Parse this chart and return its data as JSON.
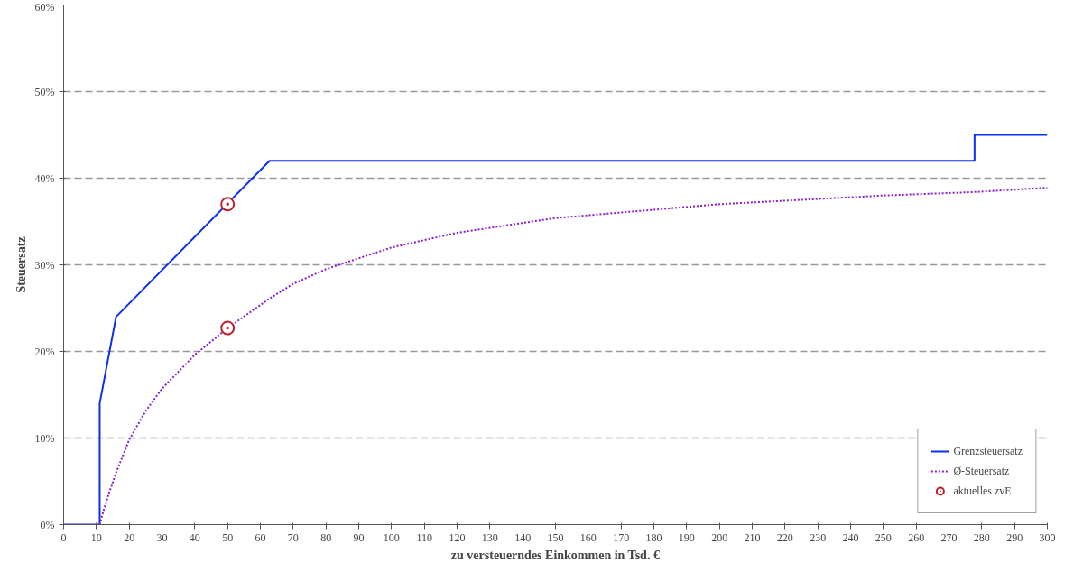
{
  "chart_data": {
    "type": "line",
    "xlabel": "zu versteuerndes Einkommen in Tsd. €",
    "ylabel": "Steuersatz",
    "xlim": [
      0,
      300
    ],
    "ylim": [
      0,
      60
    ],
    "xticks": [
      0,
      10,
      20,
      30,
      40,
      50,
      60,
      70,
      80,
      90,
      100,
      110,
      120,
      130,
      140,
      150,
      160,
      170,
      180,
      190,
      200,
      210,
      220,
      230,
      240,
      250,
      260,
      270,
      280,
      290,
      300
    ],
    "yticks": [
      {
        "value": 0,
        "label": "0%"
      },
      {
        "value": 10,
        "label": "10%"
      },
      {
        "value": 20,
        "label": "20%"
      },
      {
        "value": 30,
        "label": "30%"
      },
      {
        "value": 40,
        "label": "40%"
      },
      {
        "value": 50,
        "label": "50%"
      },
      {
        "value": 60,
        "label": "60%"
      }
    ],
    "grid": "y",
    "legend": "bottom right",
    "series": [
      {
        "name": "Grenzsteuersatz",
        "color": "#0a2ff0",
        "line_style": "solid",
        "x": [
          0,
          11,
          11,
          16,
          62.8,
          277.8,
          277.8,
          300
        ],
        "values": [
          0,
          0,
          14,
          24,
          42,
          42,
          45,
          45
        ]
      },
      {
        "name": "Ø-Steuersatz",
        "color": "#8a1fd0",
        "line_style": "dotted",
        "x": [
          11,
          12,
          14,
          16,
          20,
          25,
          30,
          40,
          50,
          62.8,
          70,
          80,
          100,
          120,
          150,
          200,
          250,
          277.8,
          300
        ],
        "values": [
          0,
          1.4,
          3.8,
          6.0,
          9.8,
          13.1,
          15.7,
          19.6,
          22.7,
          26.1,
          27.8,
          29.5,
          32.0,
          33.7,
          35.4,
          37.0,
          38.0,
          38.4,
          38.9
        ]
      },
      {
        "name": "aktuelles zvE",
        "type": "scatter",
        "color": "#c0202a",
        "marker": "circle",
        "x": [
          50,
          50
        ],
        "values": [
          37,
          22.7
        ]
      }
    ]
  }
}
